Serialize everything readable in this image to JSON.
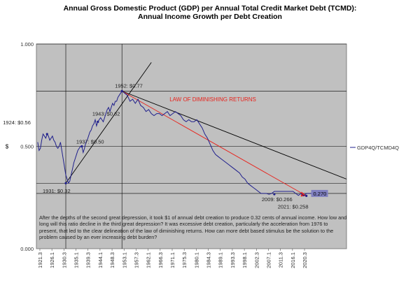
{
  "chart_data": {
    "type": "line",
    "title": "Annual Gross Domestic Product (GDP) per Annual Total Credit Market Debt (TCMD):",
    "subtitle": "Annual Income Growth per Debt Creation",
    "ylabel": "$",
    "ylim": [
      0.0,
      1.0
    ],
    "yticks": [
      "0.000",
      "0.500",
      "1.000"
    ],
    "xticks": [
      "1921.3",
      "1926.1",
      "1930.3",
      "1935.1",
      "1939.3",
      "1944.1",
      "1948.3",
      "1953.1",
      "1957.3",
      "1962.1",
      "1966.3",
      "1971.1",
      "1975.3",
      "1980.1",
      "1984.3",
      "1989.1",
      "1993.3",
      "1998.1",
      "2002.3",
      "2007.1",
      "2011.3",
      "2016.1",
      "2020.3"
    ],
    "legend": "top-right",
    "grid": true,
    "series": [
      {
        "name": "GDP4Q/TCMD4Q",
        "x": [
          1920.5,
          1921.0,
          1921.5,
          1922.0,
          1922.5,
          1923.0,
          1923.5,
          1924.0,
          1924.5,
          1925.0,
          1925.5,
          1926.0,
          1926.5,
          1927.0,
          1927.5,
          1928.0,
          1928.5,
          1929.0,
          1929.5,
          1930.0,
          1930.5,
          1931.0,
          1931.5,
          1932.0,
          1932.5,
          1933.0,
          1933.5,
          1934.0,
          1934.5,
          1935.0,
          1935.5,
          1936.0,
          1936.5,
          1937.0,
          1937.5,
          1938.0,
          1938.5,
          1939.0,
          1939.5,
          1940.0,
          1940.5,
          1941.0,
          1941.5,
          1942.0,
          1942.5,
          1943.0,
          1943.5,
          1944.0,
          1944.5,
          1945.0,
          1945.5,
          1946.0,
          1946.5,
          1947.0,
          1947.5,
          1948.0,
          1948.5,
          1949.0,
          1949.5,
          1950.0,
          1950.5,
          1951.0,
          1951.5,
          1952.0,
          1953.0,
          1954.0,
          1955.0,
          1956.0,
          1957.0,
          1958.0,
          1959.0,
          1960.0,
          1961.0,
          1962.0,
          1963.0,
          1964.0,
          1965.0,
          1966.0,
          1967.0,
          1968.0,
          1969.0,
          1970.0,
          1971.0,
          1972.0,
          1973.0,
          1974.0,
          1975.0,
          1976.0,
          1977.0,
          1978.0,
          1979.0,
          1980.0,
          1981.0,
          1982.0,
          1983.0,
          1984.0,
          1985.0,
          1986.0,
          1987.0,
          1988.0,
          1989.0,
          1990.0,
          1991.0,
          1992.0,
          1993.0,
          1994.0,
          1995.0,
          1996.0,
          1997.0,
          1998.0,
          1999.0,
          2000.0,
          2001.0,
          2002.0,
          2003.0,
          2004.0,
          2005.0,
          2006.0,
          2007.0,
          2008.0,
          2009.0,
          2010.0,
          2011.0,
          2012.0,
          2013.0,
          2014.0,
          2015.0,
          2016.0,
          2017.0,
          2018.0,
          2019.0,
          2020.0,
          2021.0,
          2022.0,
          2023.0
        ],
        "values": [
          0.52,
          0.48,
          0.49,
          0.53,
          0.56,
          0.55,
          0.54,
          0.56,
          0.55,
          0.53,
          0.54,
          0.55,
          0.53,
          0.52,
          0.5,
          0.49,
          0.5,
          0.52,
          0.48,
          0.44,
          0.4,
          0.36,
          0.34,
          0.32,
          0.33,
          0.36,
          0.39,
          0.42,
          0.44,
          0.46,
          0.48,
          0.49,
          0.5,
          0.5,
          0.47,
          0.49,
          0.52,
          0.53,
          0.55,
          0.57,
          0.58,
          0.6,
          0.61,
          0.63,
          0.6,
          0.62,
          0.63,
          0.64,
          0.63,
          0.62,
          0.64,
          0.66,
          0.68,
          0.69,
          0.67,
          0.69,
          0.71,
          0.7,
          0.72,
          0.72,
          0.74,
          0.75,
          0.76,
          0.77,
          0.76,
          0.75,
          0.72,
          0.73,
          0.71,
          0.73,
          0.7,
          0.69,
          0.67,
          0.68,
          0.66,
          0.65,
          0.66,
          0.66,
          0.65,
          0.66,
          0.67,
          0.65,
          0.66,
          0.67,
          0.66,
          0.65,
          0.63,
          0.62,
          0.63,
          0.62,
          0.62,
          0.63,
          0.61,
          0.59,
          0.56,
          0.54,
          0.51,
          0.48,
          0.46,
          0.45,
          0.44,
          0.43,
          0.42,
          0.41,
          0.4,
          0.39,
          0.38,
          0.37,
          0.35,
          0.34,
          0.32,
          0.31,
          0.3,
          0.29,
          0.28,
          0.27,
          0.27,
          0.27,
          0.266,
          0.27,
          0.28,
          0.28,
          0.28,
          0.28,
          0.28,
          0.28,
          0.28,
          0.28,
          0.27,
          0.26,
          0.27,
          0.258,
          0.27,
          0.27,
          0.27
        ]
      }
    ],
    "annotations": [
      {
        "text": "1924:  $0.56",
        "x": 1924,
        "y": 0.56
      },
      {
        "text": "1931:  $0.32",
        "x": 1931,
        "y": 0.32
      },
      {
        "text": "1937:  $0.50",
        "x": 1937,
        "y": 0.5
      },
      {
        "text": "1943:  $0.62",
        "x": 1943,
        "y": 0.62
      },
      {
        "text": "1952:  $0.77",
        "x": 1952,
        "y": 0.77
      },
      {
        "text": "2009:  $0.266",
        "x": 2009,
        "y": 0.266
      },
      {
        "text": "2021:  $0.258",
        "x": 2021,
        "y": 0.258
      },
      {
        "text": "0.270",
        "x": 2022,
        "y": 0.27
      },
      {
        "text": "LAW OF DIMINISHING RETURNS",
        "x": 1986,
        "y": 0.72
      }
    ],
    "trendlines": [
      {
        "name": "rise",
        "from": [
          1931,
          0.32
        ],
        "to": [
          1963,
          0.91
        ],
        "color": "#000000"
      },
      {
        "name": "decline",
        "from": [
          1952,
          0.77
        ],
        "to": [
          2036,
          0.34
        ],
        "color": "#000000"
      },
      {
        "name": "diminishing",
        "from": [
          1952,
          0.77
        ],
        "to": [
          2021,
          0.258
        ],
        "color": "#e8231c"
      }
    ],
    "note": "After the depths of the second great depression, it took $1 of annual debt creation to produce 0.32 cents of annual income. How low and long will this ratio decline in the third great depression?  It was excessive debt creation, particularly the acceleration from 1976 to present, that led to the clear delineation  of the law of diminishing  returns.  How can more debt based stimulus be the solution to the problem caused by an ever increasing debt burden?"
  },
  "colors": {
    "plot_bg": "#c0c0c0",
    "series": "#1f1f8c",
    "red_line": "#e8231c",
    "label_box": "#8080c0"
  }
}
